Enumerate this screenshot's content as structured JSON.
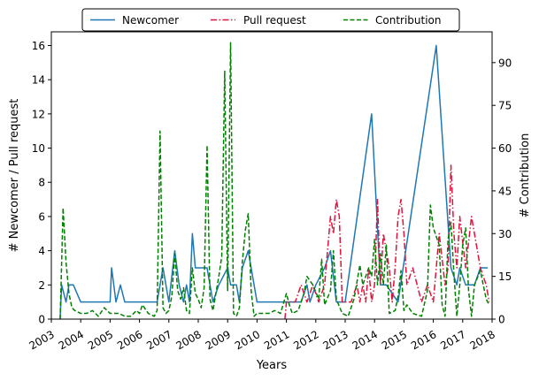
{
  "chart_data": {
    "type": "line",
    "xlabel": "Years",
    "ylabel_left": "# Newcomer / Pull request",
    "ylabel_right": "# Contribution",
    "xlim": [
      2003,
      2018
    ],
    "ylim_left": [
      0,
      16.8
    ],
    "ylim_right": [
      0,
      100.8
    ],
    "x_ticks": [
      "2003",
      "2004",
      "2005",
      "2006",
      "2007",
      "2008",
      "2009",
      "2010",
      "2011",
      "2012",
      "2013",
      "2014",
      "2015",
      "2016",
      "2017",
      "2018"
    ],
    "y_ticks_left": [
      "0",
      "2",
      "4",
      "6",
      "8",
      "10",
      "12",
      "14",
      "16"
    ],
    "y_ticks_right": [
      "0",
      "15",
      "30",
      "45",
      "60",
      "75",
      "90"
    ],
    "legend_position": "top-center",
    "series": [
      {
        "name": "Newcomer",
        "axis": "left",
        "color": "#1f77b4",
        "style": "solid",
        "points": [
          [
            2003.3,
            0
          ],
          [
            2003.35,
            2
          ],
          [
            2003.5,
            1
          ],
          [
            2003.6,
            2
          ],
          [
            2003.75,
            2
          ],
          [
            2004.0,
            1
          ],
          [
            2004.3,
            1
          ],
          [
            2004.6,
            1
          ],
          [
            2005.0,
            1
          ],
          [
            2005.05,
            3
          ],
          [
            2005.2,
            1
          ],
          [
            2005.35,
            2
          ],
          [
            2005.5,
            1
          ],
          [
            2005.8,
            1
          ],
          [
            2006.2,
            1
          ],
          [
            2006.6,
            1
          ],
          [
            2006.8,
            3
          ],
          [
            2007.0,
            1
          ],
          [
            2007.2,
            4
          ],
          [
            2007.35,
            2
          ],
          [
            2007.5,
            1
          ],
          [
            2007.6,
            2
          ],
          [
            2007.7,
            1
          ],
          [
            2007.8,
            5
          ],
          [
            2007.9,
            3
          ],
          [
            2008.0,
            3
          ],
          [
            2008.3,
            3
          ],
          [
            2008.5,
            1
          ],
          [
            2008.7,
            2
          ],
          [
            2009.0,
            3
          ],
          [
            2009.1,
            2
          ],
          [
            2009.3,
            2
          ],
          [
            2009.4,
            1
          ],
          [
            2009.5,
            3
          ],
          [
            2009.7,
            4
          ],
          [
            2009.8,
            3
          ],
          [
            2010.0,
            1
          ],
          [
            2010.5,
            1
          ],
          [
            2011.0,
            1
          ],
          [
            2011.5,
            1
          ],
          [
            2011.7,
            2
          ],
          [
            2011.8,
            1
          ],
          [
            2012.0,
            2
          ],
          [
            2012.3,
            3
          ],
          [
            2012.5,
            4
          ],
          [
            2012.7,
            1
          ],
          [
            2013.0,
            1
          ],
          [
            2013.9,
            12
          ],
          [
            2014.2,
            2
          ],
          [
            2014.4,
            2
          ],
          [
            2014.8,
            1
          ],
          [
            2016.1,
            16
          ],
          [
            2016.6,
            3
          ],
          [
            2016.8,
            2
          ],
          [
            2016.9,
            3
          ],
          [
            2017.1,
            2
          ],
          [
            2017.4,
            2
          ],
          [
            2017.6,
            3
          ],
          [
            2017.85,
            3
          ]
        ]
      },
      {
        "name": "Pull request",
        "axis": "left",
        "color": "#dc143c",
        "style": "dashdot",
        "points": [
          [
            2010.95,
            0
          ],
          [
            2011.0,
            1
          ],
          [
            2011.3,
            1
          ],
          [
            2011.5,
            2
          ],
          [
            2011.7,
            1
          ],
          [
            2011.9,
            2
          ],
          [
            2012.1,
            1
          ],
          [
            2012.3,
            2
          ],
          [
            2012.5,
            6
          ],
          [
            2012.6,
            5
          ],
          [
            2012.7,
            7
          ],
          [
            2012.8,
            6
          ],
          [
            2012.9,
            1
          ],
          [
            2013.2,
            1
          ],
          [
            2013.4,
            2
          ],
          [
            2013.5,
            1
          ],
          [
            2013.6,
            2
          ],
          [
            2013.7,
            1
          ],
          [
            2013.8,
            3
          ],
          [
            2013.9,
            1
          ],
          [
            2014.0,
            2
          ],
          [
            2014.1,
            7
          ],
          [
            2014.2,
            2
          ],
          [
            2014.3,
            5
          ],
          [
            2014.4,
            4
          ],
          [
            2014.5,
            3
          ],
          [
            2014.6,
            1
          ],
          [
            2014.7,
            3
          ],
          [
            2014.8,
            6
          ],
          [
            2014.9,
            7
          ],
          [
            2015.0,
            5
          ],
          [
            2015.1,
            2
          ],
          [
            2015.3,
            3
          ],
          [
            2015.6,
            1
          ],
          [
            2015.8,
            2
          ],
          [
            2016.0,
            1
          ],
          [
            2016.2,
            5
          ],
          [
            2016.4,
            2
          ],
          [
            2016.5,
            3
          ],
          [
            2016.6,
            9
          ],
          [
            2016.7,
            5
          ],
          [
            2016.8,
            3
          ],
          [
            2016.9,
            6
          ],
          [
            2017.1,
            3
          ],
          [
            2017.3,
            6
          ],
          [
            2017.4,
            5
          ],
          [
            2017.6,
            3
          ],
          [
            2017.8,
            2
          ],
          [
            2017.9,
            1
          ]
        ]
      },
      {
        "name": "Contribution",
        "axis": "right",
        "color": "#008000",
        "style": "dashed",
        "points": [
          [
            2003.3,
            0
          ],
          [
            2003.4,
            39
          ],
          [
            2003.5,
            20
          ],
          [
            2003.6,
            9
          ],
          [
            2003.7,
            4
          ],
          [
            2003.8,
            3
          ],
          [
            2004.0,
            2
          ],
          [
            2004.2,
            2
          ],
          [
            2004.4,
            3
          ],
          [
            2004.5,
            2
          ],
          [
            2004.6,
            1
          ],
          [
            2004.8,
            4
          ],
          [
            2005.0,
            2
          ],
          [
            2005.3,
            2
          ],
          [
            2005.5,
            1
          ],
          [
            2005.7,
            1
          ],
          [
            2005.9,
            3
          ],
          [
            2006.0,
            2
          ],
          [
            2006.1,
            5
          ],
          [
            2006.3,
            2
          ],
          [
            2006.5,
            1
          ],
          [
            2006.6,
            3
          ],
          [
            2006.7,
            66
          ],
          [
            2006.8,
            4
          ],
          [
            2006.9,
            2
          ],
          [
            2007.0,
            3
          ],
          [
            2007.1,
            8
          ],
          [
            2007.2,
            23
          ],
          [
            2007.3,
            10
          ],
          [
            2007.4,
            7
          ],
          [
            2007.5,
            11
          ],
          [
            2007.6,
            3
          ],
          [
            2007.7,
            2
          ],
          [
            2007.8,
            18
          ],
          [
            2007.9,
            9
          ],
          [
            2008.0,
            7
          ],
          [
            2008.1,
            4
          ],
          [
            2008.2,
            11
          ],
          [
            2008.3,
            61
          ],
          [
            2008.4,
            7
          ],
          [
            2008.5,
            3
          ],
          [
            2008.6,
            9
          ],
          [
            2008.7,
            15
          ],
          [
            2008.8,
            22
          ],
          [
            2008.9,
            87
          ],
          [
            2009.0,
            10
          ],
          [
            2009.1,
            97
          ],
          [
            2009.2,
            2
          ],
          [
            2009.3,
            1
          ],
          [
            2009.4,
            4
          ],
          [
            2009.5,
            20
          ],
          [
            2009.6,
            31
          ],
          [
            2009.7,
            37
          ],
          [
            2009.8,
            10
          ],
          [
            2009.9,
            1
          ],
          [
            2010.0,
            2
          ],
          [
            2010.2,
            2
          ],
          [
            2010.4,
            2
          ],
          [
            2010.6,
            3
          ],
          [
            2010.8,
            2
          ],
          [
            2011.0,
            9
          ],
          [
            2011.1,
            5
          ],
          [
            2011.2,
            2
          ],
          [
            2011.4,
            3
          ],
          [
            2011.6,
            9
          ],
          [
            2011.7,
            15
          ],
          [
            2011.9,
            12
          ],
          [
            2012.1,
            7
          ],
          [
            2012.2,
            21
          ],
          [
            2012.3,
            5
          ],
          [
            2012.5,
            10
          ],
          [
            2012.6,
            24
          ],
          [
            2012.7,
            7
          ],
          [
            2012.9,
            2
          ],
          [
            2013.1,
            1
          ],
          [
            2013.3,
            7
          ],
          [
            2013.5,
            19
          ],
          [
            2013.6,
            12
          ],
          [
            2013.8,
            18
          ],
          [
            2013.9,
            15
          ],
          [
            2014.0,
            28
          ],
          [
            2014.1,
            12
          ],
          [
            2014.2,
            23
          ],
          [
            2014.3,
            12
          ],
          [
            2014.4,
            26
          ],
          [
            2014.5,
            2
          ],
          [
            2014.7,
            3
          ],
          [
            2014.8,
            8
          ],
          [
            2014.9,
            17
          ],
          [
            2015.0,
            3
          ],
          [
            2015.1,
            5
          ],
          [
            2015.3,
            2
          ],
          [
            2015.6,
            1
          ],
          [
            2015.8,
            10
          ],
          [
            2015.9,
            40
          ],
          [
            2016.0,
            32
          ],
          [
            2016.2,
            26
          ],
          [
            2016.3,
            5
          ],
          [
            2016.4,
            1
          ],
          [
            2016.5,
            28
          ],
          [
            2016.6,
            34
          ],
          [
            2016.7,
            16
          ],
          [
            2016.8,
            1
          ],
          [
            2016.9,
            12
          ],
          [
            2017.0,
            26
          ],
          [
            2017.1,
            32
          ],
          [
            2017.2,
            10
          ],
          [
            2017.3,
            1
          ],
          [
            2017.4,
            12
          ],
          [
            2017.6,
            17
          ],
          [
            2017.8,
            7
          ],
          [
            2017.9,
            5
          ]
        ]
      }
    ]
  }
}
